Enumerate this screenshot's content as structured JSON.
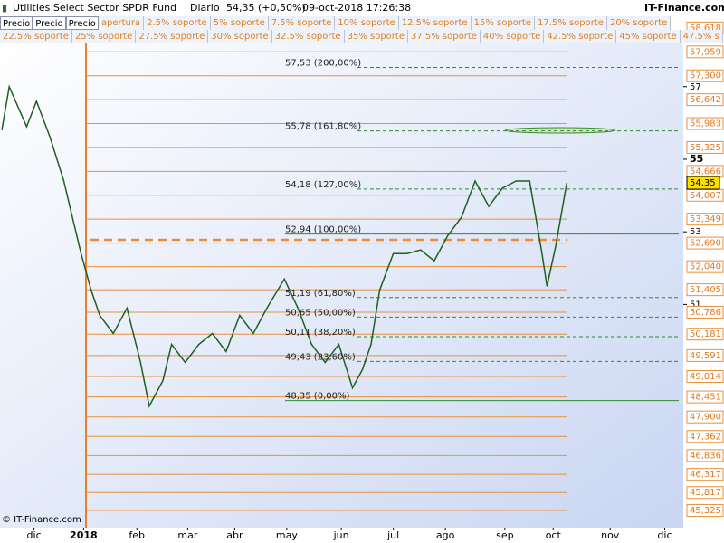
{
  "header": {
    "instrument": "Utilities Select Sector SPDR Fund",
    "period": "Diario",
    "price_change": "54,35 (+0,50%)",
    "timestamp": "09-oct-2018 17:26:38",
    "site": "IT-Finance.com"
  },
  "toolbar": {
    "buttons": [
      "Precio",
      "Precio",
      "Precio"
    ],
    "row1": [
      "apertura",
      "2.5% soporte",
      "5% soporte",
      "7.5% soporte",
      "10% soporte",
      "12.5% soporte",
      "15% soporte",
      "17.5% soporte",
      "20% soporte"
    ],
    "row2": [
      "22.5% soporte",
      "25% soporte",
      "27.5% soporte",
      "30% soporte",
      "32.5% soporte",
      "35% soporte",
      "37.5% soporte",
      "40% soporte",
      "42.5% soporte",
      "45% soporte",
      "47.5% s"
    ]
  },
  "footer": "© IT-Finance.com",
  "chart_data": {
    "type": "line",
    "color": "#1f5f1f",
    "x": [
      0,
      0.6,
      2.0,
      2.8,
      3.9,
      5.0,
      5.7,
      6.4,
      7.2,
      7.9,
      9.0,
      10.1,
      11.2,
      11.9,
      13.0,
      13.7,
      14.8,
      15.9,
      17.0,
      18.1,
      19.2,
      20.3,
      21.4,
      22.8,
      23.9,
      25.0,
      26.1,
      27.2,
      28.3,
      29.1,
      29.8,
      30.5,
      31.6,
      32.7,
      33.8,
      34.9,
      36.0,
      37.1,
      38.2,
      39.3,
      40.4,
      41.5,
      42.6,
      43.6,
      44.0,
      44.7,
      45.6
    ],
    "values": [
      55.8,
      57.0,
      55.9,
      56.6,
      55.6,
      54.4,
      53.4,
      52.4,
      51.4,
      50.7,
      50.2,
      50.9,
      49.4,
      48.2,
      48.9,
      49.9,
      49.4,
      49.9,
      50.2,
      49.7,
      50.7,
      50.2,
      50.9,
      51.7,
      50.9,
      49.9,
      49.4,
      49.9,
      48.7,
      49.2,
      49.9,
      51.4,
      52.4,
      52.4,
      52.5,
      52.2,
      52.9,
      53.4,
      54.4,
      53.7,
      54.2,
      54.4,
      54.4,
      52.4,
      51.5,
      52.6,
      54.35
    ],
    "xlim": [
      0,
      55
    ],
    "xticks": [
      {
        "value": 2.6,
        "label": "dic"
      },
      {
        "value": 6.6,
        "label": "2018"
      },
      {
        "value": 10.9,
        "label": "feb"
      },
      {
        "value": 15.0,
        "label": "mar"
      },
      {
        "value": 18.8,
        "label": "abr"
      },
      {
        "value": 23.0,
        "label": "may"
      },
      {
        "value": 27.4,
        "label": "jun"
      },
      {
        "value": 31.6,
        "label": "jul"
      },
      {
        "value": 35.8,
        "label": "ago"
      },
      {
        "value": 40.6,
        "label": "sep"
      },
      {
        "value": 44.5,
        "label": "oct"
      },
      {
        "value": 49.1,
        "label": "nov"
      },
      {
        "value": 53.5,
        "label": "dic"
      }
    ],
    "ylim": [
      44.85,
      58.54
    ],
    "yticks": [
      57,
      55,
      53,
      51
    ],
    "support_levels": [
      {
        "value": 58.618,
        "label": "58,618"
      },
      {
        "value": 57.959,
        "label": "57,959"
      },
      {
        "value": 57.3,
        "label": "57,300"
      },
      {
        "value": 56.642,
        "label": "56,642"
      },
      {
        "value": 55.983,
        "label": "55,983"
      },
      {
        "value": 55.325,
        "label": "55,325"
      },
      {
        "value": 54.666,
        "label": "54,666"
      },
      {
        "value": 54.007,
        "label": "54,007"
      },
      {
        "value": 53.349,
        "label": "53,349"
      },
      {
        "value": 52.69,
        "label": "52,690"
      },
      {
        "value": 52.04,
        "label": "52,040"
      },
      {
        "value": 51.405,
        "label": "51,405"
      },
      {
        "value": 50.786,
        "label": "50,786"
      },
      {
        "value": 50.181,
        "label": "50,181"
      },
      {
        "value": 49.591,
        "label": "49,591"
      },
      {
        "value": 49.014,
        "label": "49,014"
      },
      {
        "value": 48.451,
        "label": "48,451"
      },
      {
        "value": 47.9,
        "label": "47,900"
      },
      {
        "value": 47.362,
        "label": "47,362"
      },
      {
        "value": 46.836,
        "label": "46,836"
      },
      {
        "value": 46.317,
        "label": "46,317"
      },
      {
        "value": 45.817,
        "label": "45,817"
      },
      {
        "value": 45.325,
        "label": "45,325"
      }
    ],
    "fibonacci_levels": [
      {
        "value": 57.53,
        "label": "57,53 (200,00%)"
      },
      {
        "value": 55.78,
        "label": "55,78 (161,80%)"
      },
      {
        "value": 54.18,
        "label": "54,18 (127,00%)"
      },
      {
        "value": 52.94,
        "label": "52,94 (100,00%)"
      },
      {
        "value": 51.19,
        "label": "51,19 (61,80%)"
      },
      {
        "value": 50.65,
        "label": "50,65 (50,00%)"
      },
      {
        "value": 50.11,
        "label": "50,11 (38,20%)"
      },
      {
        "value": 49.43,
        "label": "49,43 (23,60%)"
      },
      {
        "value": 48.35,
        "label": "48,35 (0,00%)"
      }
    ],
    "reference_level": 52.78,
    "last_price": {
      "value": 54.35,
      "label": "54,35"
    }
  }
}
